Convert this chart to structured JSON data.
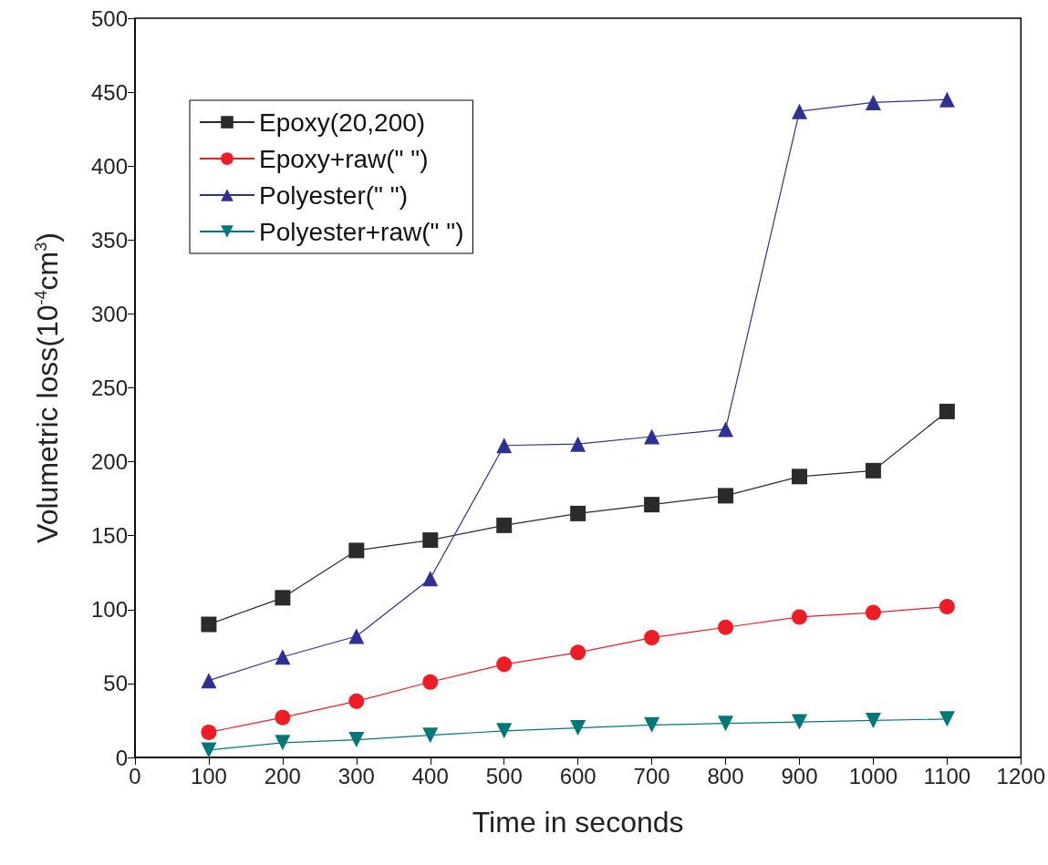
{
  "chart_data": {
    "type": "line",
    "xlabel": "Time in seconds",
    "ylabel": "Volumetric loss(10$^{-4}$cm$^{3}$)",
    "x": [
      100,
      200,
      300,
      400,
      500,
      600,
      700,
      800,
      900,
      1000,
      1100
    ],
    "xlim": [
      0,
      1200
    ],
    "xticks": [
      0,
      100,
      200,
      300,
      400,
      500,
      600,
      700,
      800,
      900,
      1000,
      1100,
      1200
    ],
    "ylim": [
      0,
      500
    ],
    "yticks": [
      0,
      50,
      100,
      150,
      200,
      250,
      300,
      350,
      400,
      450,
      500
    ],
    "grid": false,
    "legend": "top left",
    "line_style": "solid",
    "series": [
      {
        "name": "Epoxy(20,200)",
        "color": "#2b2b2b",
        "marker": "square",
        "values": [
          90,
          108,
          140,
          147,
          157,
          165,
          171,
          177,
          190,
          194,
          234
        ]
      },
      {
        "name": "Epoxy+raw(\" \")",
        "color": "#ee1c24",
        "marker": "circle",
        "values": [
          17,
          27,
          38,
          51,
          63,
          71,
          81,
          88,
          95,
          98,
          102
        ]
      },
      {
        "name": "Polyester(\" \")",
        "color": "#2e3192",
        "marker": "triangle",
        "values": [
          52,
          68,
          82,
          121,
          211,
          212,
          217,
          222,
          437,
          443,
          445
        ]
      },
      {
        "name": "Polyester+raw(\" \")",
        "color": "#00787a",
        "marker": "triangle-down",
        "values": [
          5,
          10,
          12,
          15,
          18,
          20,
          22,
          23,
          24,
          25,
          26
        ]
      }
    ]
  }
}
